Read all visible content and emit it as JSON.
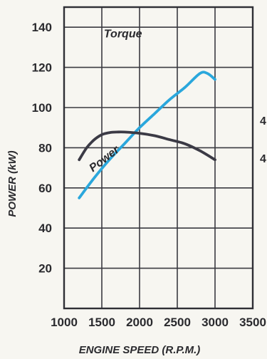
{
  "chart_data": {
    "type": "line",
    "xlabel": "ENGINE SPEED (R.P.M.)",
    "ylabel": "POWER (kW)",
    "xlim": [
      1000,
      3500
    ],
    "ylim": [
      0,
      150
    ],
    "x_ticks": [
      "1000",
      "1500",
      "2000",
      "2500",
      "3000",
      "3500"
    ],
    "y_ticks": [
      "20",
      "40",
      "60",
      "80",
      "100",
      "120",
      "140"
    ],
    "grid": true,
    "legend": "none",
    "annotations": [
      {
        "text": "Torque",
        "x": 1780,
        "y": 135
      },
      {
        "text": "Power",
        "x": 1560,
        "y": 73,
        "angle": -38
      }
    ],
    "edge_labels": [
      "4",
      "4"
    ],
    "series": [
      {
        "name": "Power",
        "color": "#2aa7dc",
        "x": [
          1200,
          1400,
          1600,
          1800,
          2000,
          2200,
          2400,
          2600,
          2800,
          2900,
          3000
        ],
        "y": [
          55,
          65,
          74,
          82,
          90,
          97,
          104,
          110,
          117,
          117,
          114
        ]
      },
      {
        "name": "Torque",
        "color": "#3b3a45",
        "x": [
          1200,
          1300,
          1400,
          1500,
          1600,
          1700,
          1800,
          2000,
          2200,
          2400,
          2600,
          2800,
          3000
        ],
        "y": [
          74,
          80,
          84,
          86.5,
          87.5,
          87.8,
          87.8,
          87.2,
          86,
          84,
          82,
          78.5,
          74
        ]
      }
    ]
  }
}
